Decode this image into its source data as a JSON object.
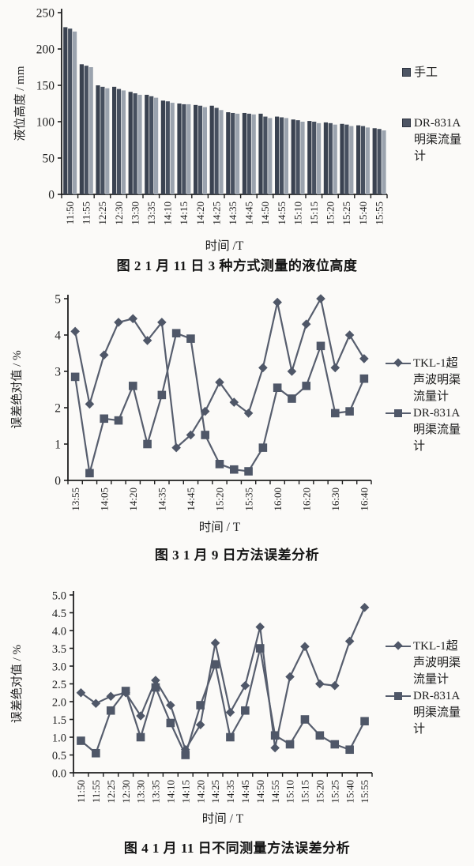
{
  "page": {
    "background": "#fbfaf8"
  },
  "colors": {
    "axis": "#1e1e1e",
    "text": "#1f1f1f",
    "line": "#575e6e",
    "marker": "#4f5768",
    "bar_dark": "#3a4250",
    "bar_mid": "#47505f",
    "bar_light": "#9ba3ae"
  },
  "chart_data": [
    {
      "id": "figure-2",
      "type": "bar",
      "title": "图 2  1 月 11 日 3 种方式测量的液位高度",
      "xlabel": "时间 /T",
      "ylabel": "液位高度 / mm",
      "ylim": [
        0,
        250
      ],
      "yticks": [
        0,
        50,
        100,
        150,
        200,
        250
      ],
      "ytick_labels": [
        "0",
        "50",
        "100",
        "150",
        "200",
        "250"
      ],
      "grid": false,
      "legend_position": "right",
      "categories": [
        "11:50",
        "11:55",
        "12:25",
        "12:30",
        "13:30",
        "13:35",
        "14:10",
        "14:15",
        "14:20",
        "14:25",
        "14:35",
        "14:45",
        "14:50",
        "14:55",
        "15:10",
        "15:15",
        "15:20",
        "15:25",
        "15:40",
        "15:55"
      ],
      "series": [
        {
          "name": "手工",
          "color": "#3a4250",
          "values": [
            230,
            179,
            150,
            148,
            141,
            137,
            129,
            125,
            123,
            122,
            113,
            112,
            111,
            107,
            103,
            101,
            99,
            97,
            95,
            91
          ]
        },
        {
          "name": "",
          "color": "#47505f",
          "values": [
            228,
            177,
            148,
            145,
            139,
            135,
            128,
            124,
            122,
            119,
            112,
            111,
            107,
            106,
            102,
            100,
            98,
            96,
            94,
            90
          ]
        },
        {
          "name": "DR-831A明渠流量计",
          "color": "#9ba3ae",
          "values": [
            224,
            175,
            146,
            143,
            137,
            133,
            126,
            124,
            120,
            116,
            111,
            110,
            105,
            105,
            100,
            98,
            96,
            94,
            92,
            88
          ]
        }
      ],
      "legend": [
        {
          "label": "手工"
        },
        {
          "label": "DR-831A明渠流量计"
        }
      ]
    },
    {
      "id": "figure-3",
      "type": "line",
      "title": "图 3  1 月 9 日方法误差分析",
      "xlabel": "时间 / T",
      "ylabel": "误差绝对值 / %",
      "ylim": [
        0,
        5
      ],
      "yticks": [
        0,
        1,
        2,
        3,
        4,
        5
      ],
      "ytick_labels": [
        "0",
        "1",
        "2",
        "3",
        "4",
        "5"
      ],
      "grid": false,
      "legend_position": "right",
      "tick_labels": [
        "13:55",
        "",
        "14:05",
        "",
        "14:20",
        "",
        "14:35",
        "",
        "14:45",
        "",
        "15:20",
        "",
        "15:35",
        "",
        "16:00",
        "",
        "16:20",
        "",
        "16:30",
        "",
        "16:40"
      ],
      "series": [
        {
          "name": "TKL-1超声波明渠流量计",
          "marker": "diamond",
          "values": [
            4.1,
            2.1,
            3.45,
            4.35,
            4.45,
            3.85,
            4.35,
            0.9,
            1.25,
            1.9,
            2.7,
            2.15,
            1.85,
            3.1,
            4.9,
            3.0,
            4.3,
            5.0,
            3.1,
            4.0,
            3.35
          ]
        },
        {
          "name": "DR-831A明渠流量计",
          "marker": "square",
          "values": [
            2.85,
            0.2,
            1.7,
            1.65,
            2.6,
            1.0,
            2.35,
            4.05,
            3.9,
            1.25,
            0.45,
            0.3,
            0.25,
            0.9,
            2.55,
            2.25,
            2.6,
            3.7,
            1.85,
            1.9,
            2.8
          ]
        }
      ]
    },
    {
      "id": "figure-4",
      "type": "line",
      "title": "图 4  1 月 11 日不同测量方法误差分析",
      "xlabel": "时间 / T",
      "ylabel": "误差绝对值 / %",
      "ylim": [
        0,
        5
      ],
      "yticks": [
        0,
        0.5,
        1,
        1.5,
        2,
        2.5,
        3,
        3.5,
        4,
        4.5,
        5
      ],
      "ytick_labels": [
        "0.0",
        "0.5",
        "1.0",
        "1.5",
        "2.0",
        "2.5",
        "3.0",
        "3.5",
        "4.0",
        "4.5",
        "5.0"
      ],
      "grid": false,
      "legend_position": "right",
      "tick_labels": [
        "11:50",
        "11:55",
        "12:25",
        "12:30",
        "13:30",
        "13:35",
        "14:10",
        "14:15",
        "14:20",
        "14:25",
        "14:35",
        "14:45",
        "14:50",
        "14:55",
        "15:10",
        "15:15",
        "15:20",
        "15:25",
        "15:40",
        "15:55"
      ],
      "series": [
        {
          "name": "TKL-1超声波明渠流量计",
          "marker": "diamond",
          "values": [
            2.25,
            1.95,
            2.15,
            2.25,
            1.6,
            2.6,
            1.9,
            0.65,
            1.35,
            3.65,
            1.7,
            2.45,
            4.1,
            0.7,
            2.7,
            3.55,
            2.5,
            2.45,
            3.7,
            4.65
          ]
        },
        {
          "name": "DR-831A明渠流量计",
          "marker": "square",
          "values": [
            0.9,
            0.55,
            1.75,
            2.3,
            1.0,
            2.4,
            1.4,
            0.5,
            1.9,
            3.05,
            1.0,
            1.75,
            3.5,
            1.05,
            0.8,
            1.5,
            1.05,
            0.8,
            0.65,
            1.45
          ]
        }
      ]
    }
  ]
}
